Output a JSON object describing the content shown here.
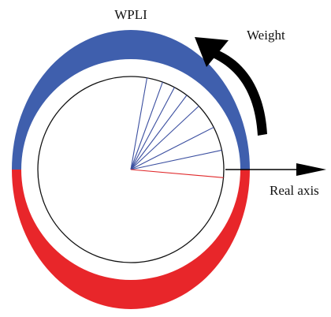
{
  "labels": {
    "title": "WPLI",
    "weight": "Weight",
    "real_axis": "Real axis"
  },
  "colors": {
    "upper_band": "#3f5fad",
    "lower_band": "#e8262a",
    "vectors_positive": "#3b4fa0",
    "vector_negative": "#e0282a",
    "circle": "#111111",
    "arrow": "#000000",
    "background": "#ffffff"
  },
  "vectors": {
    "positive_angles_deg": [
      12,
      27,
      43,
      53,
      62,
      70,
      80
    ],
    "negative_angles_deg": [
      -5
    ]
  }
}
